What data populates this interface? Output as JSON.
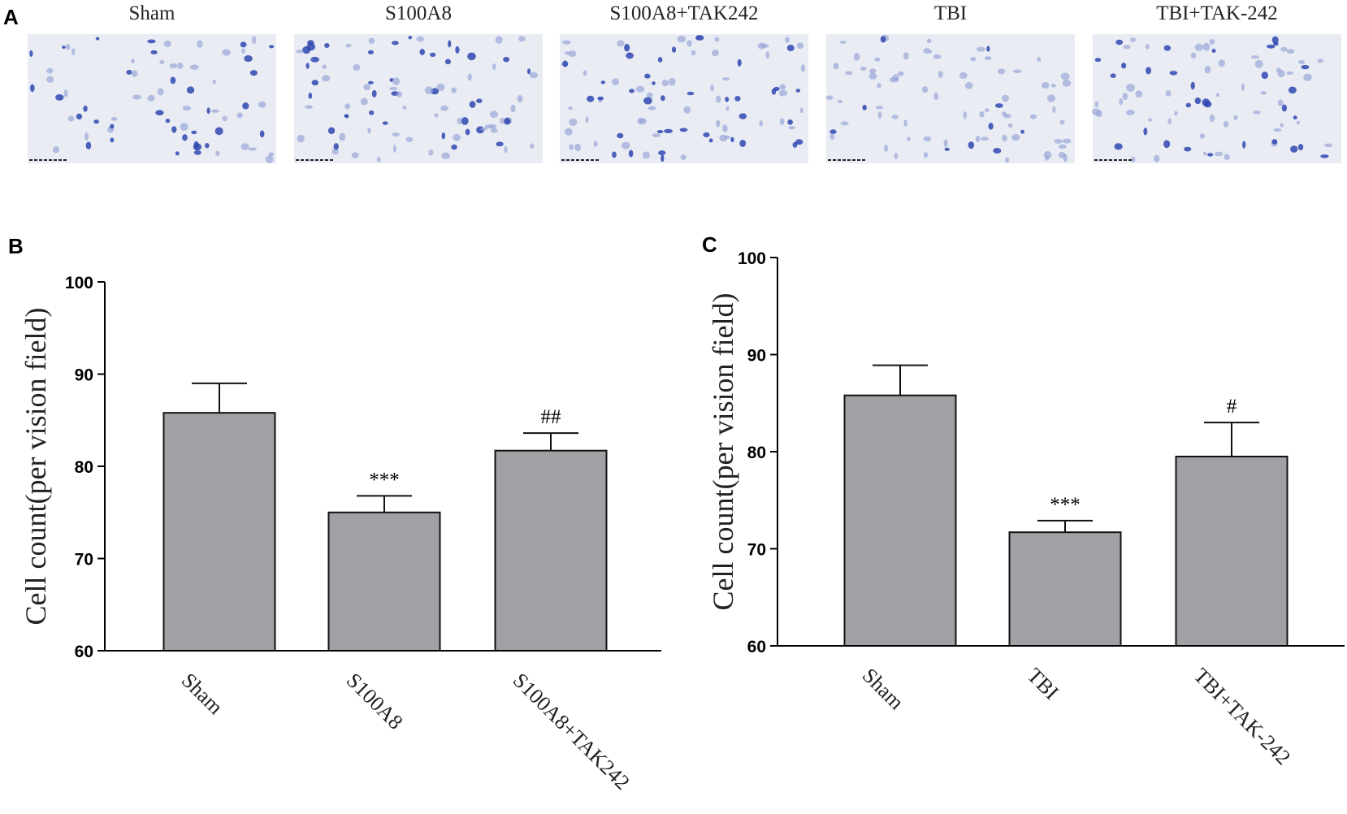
{
  "panels": {
    "A": {
      "label": "A",
      "titles": [
        "Sham",
        "S100A8",
        "S100A8+TAK242",
        "TBI",
        "TBI+TAK-242"
      ]
    }
  },
  "chart_data": [
    {
      "type": "bar",
      "panel_label": "B",
      "y_label": "Cell count(per vision field)",
      "categories": [
        "Sham",
        "S100A8",
        "S100A8+TAK242"
      ],
      "values": [
        85.8,
        75,
        81.7
      ],
      "errors": [
        3.2,
        1.8,
        1.9
      ],
      "annotations": [
        null,
        "***",
        "##"
      ],
      "color": "#a0a1a5",
      "ylim": [
        60,
        100
      ],
      "yticks": [
        60,
        70,
        80,
        90,
        100
      ],
      "grid": false
    },
    {
      "type": "bar",
      "panel_label": "C",
      "y_label": "Cell count(per vision field)",
      "categories": [
        "Sham",
        "TBI",
        "TBI+TAK-242"
      ],
      "values": [
        85.8,
        71.7,
        79.5
      ],
      "errors": [
        3.1,
        1.2,
        3.5
      ],
      "annotations": [
        null,
        "***",
        "#"
      ],
      "color": "#a0a1a5",
      "ylim": [
        60,
        100
      ],
      "yticks": [
        60,
        70,
        80,
        90,
        100
      ],
      "grid": false
    }
  ]
}
